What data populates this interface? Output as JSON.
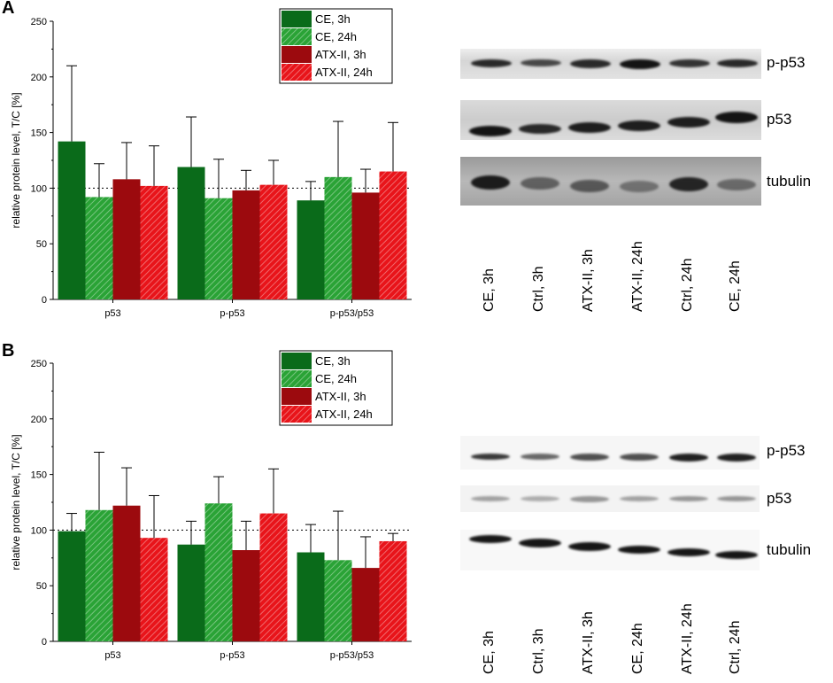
{
  "panels": [
    {
      "label": "A",
      "chart_data": {
        "type": "bar",
        "categories": [
          "p53",
          "p-p53",
          "p-p53/p53"
        ],
        "ylabel": "relative protein level, T/C [%]",
        "xlabel": "",
        "ylim": [
          0,
          250
        ],
        "yticks": [
          "0",
          "50",
          "100",
          "150",
          "200",
          "250"
        ],
        "reference_line": 100,
        "legend_position": "top-center",
        "series": [
          {
            "name": "CE, 3h",
            "color": "#0a6b1a",
            "hatch": false,
            "values": [
              142,
              119,
              89
            ],
            "errors": [
              68,
              45,
              17
            ]
          },
          {
            "name": "CE, 24h",
            "color": "#2aa336",
            "hatch": true,
            "values": [
              92,
              91,
              110
            ],
            "errors": [
              30,
              35,
              50
            ]
          },
          {
            "name": "ATX-II, 3h",
            "color": "#9c0a0e",
            "hatch": false,
            "values": [
              108,
              98,
              96
            ],
            "errors": [
              33,
              18,
              21
            ]
          },
          {
            "name": "ATX-II, 24h",
            "color": "#e8141a",
            "hatch": true,
            "values": [
              102,
              103,
              115
            ],
            "errors": [
              36,
              22,
              44
            ]
          }
        ]
      },
      "blot": {
        "bands": [
          "p-p53",
          "p53",
          "tubulin"
        ],
        "lanes": [
          "CE, 3h",
          "Ctrl, 3h",
          "ATX-II, 3h",
          "ATX-II, 24h",
          "Ctrl, 24h",
          "CE, 24h"
        ]
      }
    },
    {
      "label": "B",
      "chart_data": {
        "type": "bar",
        "categories": [
          "p53",
          "p-p53",
          "p-p53/p53"
        ],
        "ylabel": "relative protein level, T/C [%]",
        "xlabel": "",
        "ylim": [
          0,
          250
        ],
        "yticks": [
          "0",
          "50",
          "100",
          "150",
          "200",
          "250"
        ],
        "reference_line": 100,
        "legend_position": "top-center",
        "series": [
          {
            "name": "CE, 3h",
            "color": "#0a6b1a",
            "hatch": false,
            "values": [
              99,
              87,
              80
            ],
            "errors": [
              16,
              21,
              25
            ]
          },
          {
            "name": "CE, 24h",
            "color": "#2aa336",
            "hatch": true,
            "values": [
              118,
              124,
              73
            ],
            "errors": [
              52,
              24,
              44
            ]
          },
          {
            "name": "ATX-II, 3h",
            "color": "#9c0a0e",
            "hatch": false,
            "values": [
              122,
              82,
              66
            ],
            "errors": [
              34,
              26,
              28
            ]
          },
          {
            "name": "ATX-II, 24h",
            "color": "#e8141a",
            "hatch": true,
            "values": [
              93,
              115,
              90
            ],
            "errors": [
              38,
              40,
              7
            ]
          }
        ]
      },
      "blot": {
        "bands": [
          "p-p53",
          "p53",
          "tubulin"
        ],
        "lanes": [
          "CE, 3h",
          "Ctrl, 3h",
          "ATX-II, 3h",
          "CE, 24h",
          "ATX-II, 24h",
          "Ctrl, 24h"
        ]
      }
    }
  ]
}
